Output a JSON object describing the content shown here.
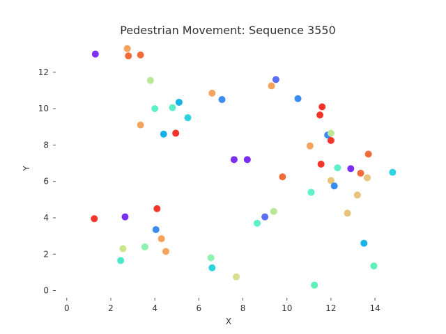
{
  "chart_data": {
    "type": "scatter",
    "title": "Pedestrian Movement: Sequence 3550",
    "xlabel": "X",
    "ylabel": "Y",
    "xlim": [
      -0.5,
      15.2
    ],
    "ylim": [
      -0.4,
      13.6
    ],
    "xticks": [
      0,
      2,
      4,
      6,
      8,
      10,
      12,
      14
    ],
    "yticks": [
      0,
      2,
      4,
      6,
      8,
      10,
      12
    ],
    "grid": false,
    "points": [
      {
        "x": 1.3,
        "y": 13.0,
        "color": "#7b2ff2"
      },
      {
        "x": 2.75,
        "y": 13.3,
        "color": "#f7a35c"
      },
      {
        "x": 2.8,
        "y": 12.9,
        "color": "#f26b3a"
      },
      {
        "x": 3.35,
        "y": 12.95,
        "color": "#f26b3a"
      },
      {
        "x": 3.8,
        "y": 11.55,
        "color": "#b8e896"
      },
      {
        "x": 6.6,
        "y": 10.85,
        "color": "#f7a35c"
      },
      {
        "x": 7.05,
        "y": 10.5,
        "color": "#3b8cf0"
      },
      {
        "x": 9.3,
        "y": 11.25,
        "color": "#f7a35c"
      },
      {
        "x": 9.5,
        "y": 11.6,
        "color": "#5b6ff2"
      },
      {
        "x": 10.5,
        "y": 10.55,
        "color": "#3b8cf0"
      },
      {
        "x": 5.1,
        "y": 10.35,
        "color": "#17b3e8"
      },
      {
        "x": 4.0,
        "y": 10.0,
        "color": "#5ef0c8"
      },
      {
        "x": 4.8,
        "y": 10.05,
        "color": "#5ef0c8"
      },
      {
        "x": 5.5,
        "y": 9.5,
        "color": "#2dd4e0"
      },
      {
        "x": 3.35,
        "y": 9.1,
        "color": "#f7a35c"
      },
      {
        "x": 4.4,
        "y": 8.6,
        "color": "#17b3e8"
      },
      {
        "x": 4.95,
        "y": 8.65,
        "color": "#f2352a"
      },
      {
        "x": 11.6,
        "y": 10.1,
        "color": "#f2352a"
      },
      {
        "x": 11.5,
        "y": 9.65,
        "color": "#f2352a"
      },
      {
        "x": 11.85,
        "y": 8.55,
        "color": "#3b8cf0"
      },
      {
        "x": 12.0,
        "y": 8.65,
        "color": "#b8e896"
      },
      {
        "x": 12.0,
        "y": 8.25,
        "color": "#f2352a"
      },
      {
        "x": 11.05,
        "y": 7.95,
        "color": "#f7a35c"
      },
      {
        "x": 13.7,
        "y": 7.5,
        "color": "#f26b3a"
      },
      {
        "x": 7.6,
        "y": 7.2,
        "color": "#7b2ff2"
      },
      {
        "x": 8.2,
        "y": 7.2,
        "color": "#7b2ff2"
      },
      {
        "x": 11.55,
        "y": 6.95,
        "color": "#f2352a"
      },
      {
        "x": 12.3,
        "y": 6.75,
        "color": "#5ef0c8"
      },
      {
        "x": 12.9,
        "y": 6.7,
        "color": "#7b2ff2"
      },
      {
        "x": 13.35,
        "y": 6.45,
        "color": "#f26b3a"
      },
      {
        "x": 13.65,
        "y": 6.2,
        "color": "#e8c37a"
      },
      {
        "x": 14.8,
        "y": 6.5,
        "color": "#2dd4e0"
      },
      {
        "x": 9.8,
        "y": 6.25,
        "color": "#f26b3a"
      },
      {
        "x": 12.0,
        "y": 6.05,
        "color": "#e8c37a"
      },
      {
        "x": 12.15,
        "y": 5.75,
        "color": "#3b8cf0"
      },
      {
        "x": 11.1,
        "y": 5.4,
        "color": "#5ef0c8"
      },
      {
        "x": 13.2,
        "y": 5.25,
        "color": "#e8c37a"
      },
      {
        "x": 12.75,
        "y": 4.25,
        "color": "#e8c37a"
      },
      {
        "x": 4.1,
        "y": 4.5,
        "color": "#f2352a"
      },
      {
        "x": 2.65,
        "y": 4.05,
        "color": "#7b2ff2"
      },
      {
        "x": 1.25,
        "y": 3.95,
        "color": "#f2352a"
      },
      {
        "x": 9.4,
        "y": 4.35,
        "color": "#b8e896"
      },
      {
        "x": 9.0,
        "y": 4.05,
        "color": "#5b6ff2"
      },
      {
        "x": 8.65,
        "y": 3.7,
        "color": "#5ef0c8"
      },
      {
        "x": 4.05,
        "y": 3.35,
        "color": "#3b8cf0"
      },
      {
        "x": 4.3,
        "y": 2.85,
        "color": "#f7a35c"
      },
      {
        "x": 13.5,
        "y": 2.6,
        "color": "#17b3e8"
      },
      {
        "x": 3.55,
        "y": 2.4,
        "color": "#8ef2b0"
      },
      {
        "x": 2.55,
        "y": 2.3,
        "color": "#c8e88a"
      },
      {
        "x": 4.5,
        "y": 2.15,
        "color": "#f7a35c"
      },
      {
        "x": 6.55,
        "y": 1.8,
        "color": "#8ef2b0"
      },
      {
        "x": 2.45,
        "y": 1.65,
        "color": "#48e8c8"
      },
      {
        "x": 6.6,
        "y": 1.25,
        "color": "#2dd4e0"
      },
      {
        "x": 13.95,
        "y": 1.35,
        "color": "#5ef0b8"
      },
      {
        "x": 7.7,
        "y": 0.75,
        "color": "#d8e090"
      },
      {
        "x": 11.25,
        "y": 0.3,
        "color": "#5ef0b8"
      }
    ]
  }
}
